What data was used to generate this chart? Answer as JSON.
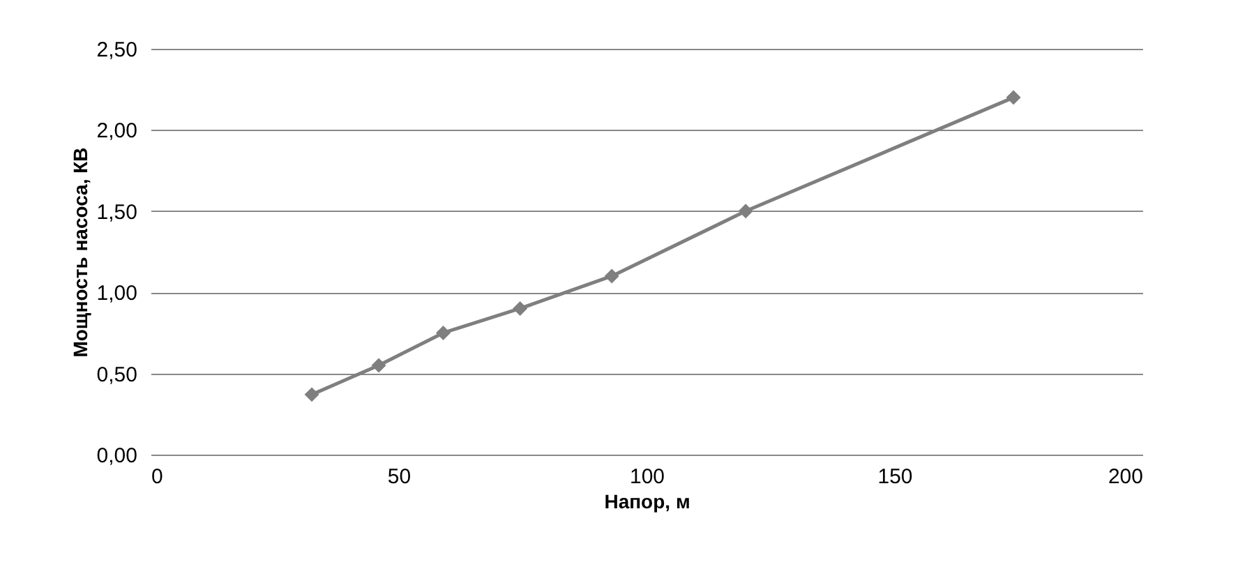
{
  "chart_data": {
    "type": "line",
    "xlabel": "Напор, м",
    "ylabel": "Мощность насоса, КВ",
    "x": [
      32.5,
      46,
      59,
      74.5,
      93,
      120,
      174
    ],
    "series": [
      {
        "color": "#7f7f7f",
        "values": [
          0.37,
          0.55,
          0.75,
          0.9,
          1.1,
          1.5,
          2.2
        ]
      }
    ],
    "xlim": [
      0,
      200
    ],
    "xticks": [
      0,
      50,
      100,
      150,
      200
    ],
    "ylim": [
      0,
      2.5
    ],
    "yticks": [
      {
        "value": 0,
        "label": "0,00"
      },
      {
        "value": 0.5,
        "label": "0,50"
      },
      {
        "value": 1,
        "label": "1,00"
      },
      {
        "value": 1.5,
        "label": "1,50"
      },
      {
        "value": 2,
        "label": "2,00"
      },
      {
        "value": 2.5,
        "label": "2,50"
      }
    ],
    "grid": "y",
    "marker": "diamond",
    "line_style": "solid",
    "legend": false
  }
}
